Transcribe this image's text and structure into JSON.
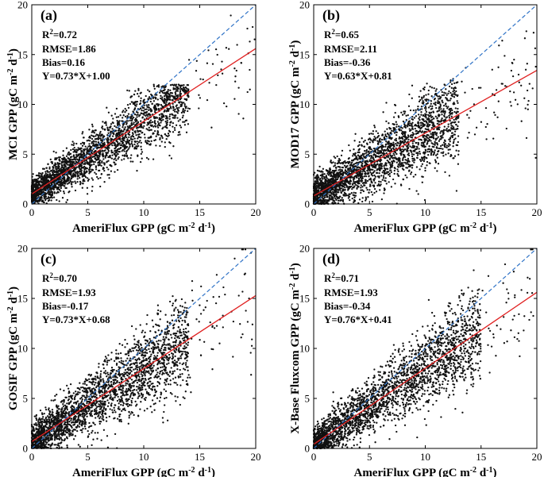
{
  "colors": {
    "fit_line": "#e02020",
    "one_to_one_line": "#2f73c7",
    "points": "#111111",
    "axes": "#000000"
  },
  "chart_data": [
    {
      "type": "scatter",
      "panel": "(a)",
      "xlabel": "AmeriFlux GPP (gC m-2 d-1)",
      "ylabel": "MCI GPP (gC m-2 d-1)",
      "xlabel_parts": {
        "pre": "AmeriFlux GPP (gC m",
        "sup1": "-2",
        "mid": " d",
        "sup2": "-1",
        "post": ")"
      },
      "ylabel_parts": {
        "pre": "MCI GPP (gC m",
        "sup1": "-2",
        "mid": " d",
        "sup2": "-1",
        "post": ")"
      },
      "xlim": [
        0,
        20
      ],
      "ylim": [
        0,
        20
      ],
      "xticks": [
        "0",
        "5",
        "10",
        "15",
        "20"
      ],
      "yticks": [
        "0",
        "5",
        "10",
        "15",
        "20"
      ],
      "stats": {
        "r2": "R2=0.72",
        "rmse": "RMSE=1.86",
        "bias": "Bias=0.16",
        "equation": "Y=0.73*X+1.00"
      },
      "fit": {
        "slope": 0.73,
        "intercept": 1.0
      },
      "scatter_profile": {
        "n": 2600,
        "x_max": 14,
        "y_cap": 12,
        "noise": 1.3,
        "outlier_x_max": 20
      }
    },
    {
      "type": "scatter",
      "panel": "(b)",
      "xlabel": "AmeriFlux GPP (gC m-2 d-1)",
      "ylabel": "MOD17 GPP (gC m-2 d-1)",
      "xlabel_parts": {
        "pre": "AmeriFlux GPP (gC m",
        "sup1": "-2",
        "mid": " d",
        "sup2": "-1",
        "post": ")"
      },
      "ylabel_parts": {
        "pre": "MOD17 GPP (gC m",
        "sup1": "-2",
        "mid": " d",
        "sup2": "-1",
        "post": ")"
      },
      "xlim": [
        0,
        20
      ],
      "ylim": [
        0,
        20
      ],
      "xticks": [
        "0",
        "5",
        "10",
        "15",
        "20"
      ],
      "yticks": [
        "0",
        "5",
        "10",
        "15",
        "20"
      ],
      "stats": {
        "r2": "R2=0.65",
        "rmse": "RMSE=2.11",
        "bias": "Bias=-0.36",
        "equation": "Y=0.63*X+0.81"
      },
      "fit": {
        "slope": 0.63,
        "intercept": 0.81
      },
      "scatter_profile": {
        "n": 2600,
        "x_max": 13,
        "y_cap": 12.6,
        "noise": 1.6,
        "outlier_x_max": 20
      }
    },
    {
      "type": "scatter",
      "panel": "(c)",
      "xlabel": "AmeriFlux GPP (gC m-2 d-1)",
      "ylabel": "GOSIF GPP (gC m-2 d-1)",
      "xlabel_parts": {
        "pre": "AmeriFlux GPP (gC m",
        "sup1": "-2",
        "mid": " d",
        "sup2": "-1",
        "post": ")"
      },
      "ylabel_parts": {
        "pre": "GOSIF GPP (gC m",
        "sup1": "-2",
        "mid": " d",
        "sup2": "-1",
        "post": ")"
      },
      "xlim": [
        0,
        20
      ],
      "ylim": [
        0,
        20
      ],
      "xticks": [
        "0",
        "5",
        "10",
        "15",
        "20"
      ],
      "yticks": [
        "0",
        "5",
        "10",
        "15",
        "20"
      ],
      "stats": {
        "r2": "R2=0.70",
        "rmse": "RMSE=1.93",
        "bias": "Bias=-0.17",
        "equation": "Y=0.73*X+0.68"
      },
      "fit": {
        "slope": 0.73,
        "intercept": 0.68
      },
      "scatter_profile": {
        "n": 2600,
        "x_max": 14,
        "y_cap": 15.5,
        "noise": 1.6,
        "outlier_x_max": 20
      }
    },
    {
      "type": "scatter",
      "panel": "(d)",
      "xlabel": "AmeriFlux GPP (gC m-2 d-1)",
      "ylabel": "X-Base Fluxcom GPP (gC m-2 d-1)",
      "xlabel_parts": {
        "pre": "AmeriFlux GPP (gC m",
        "sup1": "-2",
        "mid": " d",
        "sup2": "-1",
        "post": ")"
      },
      "ylabel_parts": {
        "pre": "X-Base Fluxcom GPP (gC m",
        "sup1": "-2",
        "mid": " d",
        "sup2": "-1",
        "post": ")"
      },
      "xlim": [
        0,
        20
      ],
      "ylim": [
        0,
        20
      ],
      "xticks": [
        "0",
        "5",
        "10",
        "15",
        "20"
      ],
      "yticks": [
        "0",
        "5",
        "10",
        "15",
        "20"
      ],
      "stats": {
        "r2": "R2=0.71",
        "rmse": "RMSE=1.93",
        "bias": "Bias=-0.34",
        "equation": "Y=0.76*X+0.41"
      },
      "fit": {
        "slope": 0.76,
        "intercept": 0.41
      },
      "scatter_profile": {
        "n": 2600,
        "x_max": 15,
        "y_cap": 18.5,
        "noise": 1.5,
        "outlier_x_max": 20
      }
    }
  ]
}
